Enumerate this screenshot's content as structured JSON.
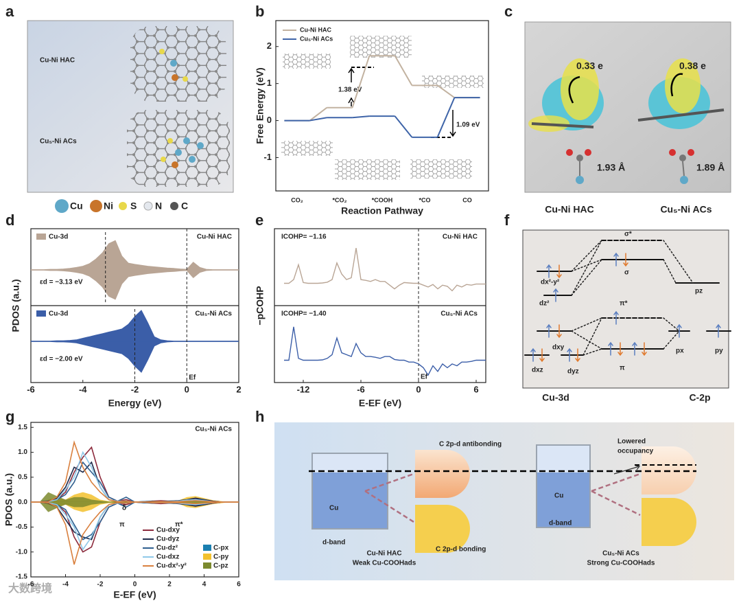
{
  "panel_labels": [
    "a",
    "b",
    "c",
    "d",
    "e",
    "f",
    "g",
    "h"
  ],
  "panel_a": {
    "rows": [
      "Cu-Ni HAC",
      "Cu₅-Ni ACs"
    ]
  },
  "atom_legend": [
    {
      "name": "Cu",
      "color": "#5fa8c8"
    },
    {
      "name": "Ni",
      "color": "#c8742a"
    },
    {
      "name": "S",
      "color": "#e8d84a"
    },
    {
      "name": "N",
      "color": "#e4e8ee"
    },
    {
      "name": "C",
      "color": "#555555"
    }
  ],
  "panel_c": {
    "charges": [
      "0.33 e",
      "0.38 e"
    ],
    "bonds": [
      "1.93 Å",
      "1.89 Å"
    ],
    "names": [
      "Cu-Ni HAC",
      "Cu₅-Ni ACs"
    ]
  },
  "panel_f": {
    "levels": [
      "σ*",
      "σ",
      "π*",
      "π",
      "dx²-y²",
      "dz²",
      "dxy",
      "dxz",
      "dyz",
      "pz",
      "px",
      "py"
    ],
    "footer": [
      "Cu-3d",
      "C-2p"
    ]
  },
  "panel_h": {
    "antibonding": "C 2p-d antibonding",
    "bonding": "C 2p-d bonding",
    "cu": [
      "Cu",
      "Cu"
    ],
    "dband": [
      "d-band",
      "d-band"
    ],
    "lowered": [
      "Lowered",
      "occupancy"
    ],
    "left_caption": [
      "Cu-Ni HAC",
      "Weak Cu-COOHads"
    ],
    "right_caption": [
      "Cu₅-Ni ACs",
      "Strong Cu-COOHads"
    ]
  },
  "watermark": "大数跨境",
  "chart_data": [
    {
      "type": "step",
      "ylabel": "Free Energy (eV)",
      "xlabel": "Reaction Pathway",
      "categories": [
        "CO₂",
        "*CO₂",
        "*COOH",
        "*CO",
        "CO"
      ],
      "series": [
        {
          "name": "Cu-Ni HAC",
          "color": "#c2b2a0",
          "values": [
            0,
            0.35,
            1.75,
            0.95,
            0.62
          ]
        },
        {
          "name": "Cu₅-Ni ACs",
          "color": "#3e64a8",
          "values": [
            0,
            0.08,
            0.12,
            -0.45,
            0.62
          ]
        }
      ],
      "ylim": [
        -1.9,
        2.7
      ],
      "yticks": [
        -1,
        0,
        1,
        2
      ],
      "annotations": [
        "1.38 eV",
        "1.09 eV"
      ]
    },
    {
      "type": "area",
      "ylabel": "PDOS (a.u.)",
      "xlabel": "Energy (eV)",
      "xlim": [
        -6,
        2
      ],
      "xticks": [
        -6,
        -4,
        -2,
        0,
        2
      ],
      "fermi_label": "Ef",
      "x": [
        -6,
        -5.75,
        -5.5,
        -5.25,
        -5,
        -4.75,
        -4.5,
        -4.25,
        -4,
        -3.75,
        -3.5,
        -3.25,
        -3,
        -2.75,
        -2.5,
        -2.25,
        -2,
        -1.75,
        -1.5,
        -1.25,
        -1,
        -0.75,
        -0.5,
        -0.25,
        0,
        0.25,
        0.5,
        0.75,
        1,
        1.25,
        1.5,
        1.75,
        2
      ],
      "series": [
        {
          "name": "Cu-3d",
          "system": "Cu-Ni HAC",
          "color": "#b9a595",
          "values": [
            0.01,
            0.01,
            0.01,
            0.02,
            0.02,
            0.03,
            0.05,
            0.08,
            0.12,
            0.2,
            0.35,
            0.55,
            0.85,
            0.95,
            0.45,
            0.22,
            0.18,
            0.15,
            0.12,
            0.1,
            0.08,
            0.06,
            0.05,
            0.03,
            0.02,
            0.25,
            0.08,
            0.02,
            0.01,
            0.01,
            0.01,
            0.01,
            0.01
          ],
          "d_center": -3.13,
          "d_center_label": "εd = −3.13 eV"
        },
        {
          "name": "Cu-3d",
          "system": "Cu₅-Ni ACs",
          "color": "#3b5ea8",
          "values": [
            0.01,
            0.01,
            0.01,
            0.01,
            0.02,
            0.02,
            0.03,
            0.05,
            0.1,
            0.15,
            0.2,
            0.25,
            0.3,
            0.35,
            0.4,
            0.55,
            0.8,
            1.0,
            0.6,
            0.15,
            0.05,
            0.02,
            0.01,
            0.01,
            0.01,
            0.01,
            0.01,
            0.01,
            0.01,
            0.01,
            0.01,
            0.01,
            0.01
          ],
          "d_center": -2.0,
          "d_center_label": "εd = −2.00 eV"
        }
      ]
    },
    {
      "type": "line",
      "ylabel": "−pCOHP",
      "xlabel": "E-EF (eV)",
      "xlim": [
        -15,
        7
      ],
      "xticks": [
        -12,
        -6,
        0,
        6
      ],
      "ylim": [
        -0.6,
        1.1
      ],
      "fermi_label": "Ef",
      "x": [
        -14,
        -13.5,
        -13,
        -12.5,
        -12,
        -11.5,
        -11,
        -10.5,
        -10,
        -9.5,
        -9,
        -8.5,
        -8,
        -7.5,
        -7,
        -6.5,
        -6,
        -5.5,
        -5,
        -4.5,
        -4,
        -3.5,
        -3,
        -2.5,
        -2,
        -1.5,
        -1,
        -0.5,
        0,
        0.5,
        1,
        1.5,
        2,
        2.5,
        3,
        3.5,
        4,
        4.5,
        5,
        5.5,
        6,
        6.5,
        7
      ],
      "series": [
        {
          "name": "Cu-Ni HAC",
          "icohp_label": "ICOHP= −1.16",
          "color": "#b9a595",
          "values": [
            0,
            0,
            0.1,
            0.5,
            0.02,
            0,
            0,
            0,
            0.01,
            0.03,
            0.1,
            0.55,
            0.25,
            0.1,
            0.15,
            0.95,
            0.1,
            0.08,
            0.05,
            0.1,
            0.05,
            0.05,
            -0.05,
            -0.15,
            -0.05,
            0.02,
            0.01,
            0,
            0,
            -0.05,
            -0.1,
            -0.03,
            -0.15,
            -0.05,
            -0.08,
            -0.2,
            -0.05,
            -0.1,
            -0.03,
            -0.05,
            -0.02,
            -0.02,
            -0.02
          ]
        },
        {
          "name": "Cu₅-Ni ACs",
          "icohp_label": "ICOHP= −1.40",
          "color": "#3b5ea8",
          "values": [
            0,
            0,
            0.9,
            0.05,
            0,
            0,
            0,
            0,
            0.01,
            0.05,
            0.15,
            0.6,
            0.2,
            0.15,
            0.1,
            0.45,
            0.2,
            0.1,
            0.1,
            0.08,
            0.05,
            0.1,
            0.1,
            0.02,
            0,
            0,
            -0.05,
            -0.05,
            -0.1,
            -0.2,
            -0.4,
            -0.15,
            -0.3,
            -0.1,
            -0.2,
            -0.1,
            -0.15,
            -0.05,
            -0.05,
            -0.03,
            0,
            0,
            0
          ]
        }
      ]
    },
    {
      "type": "pdos",
      "title": "Cu₅-Ni ACs",
      "ylabel": "PDOS (a.u.)",
      "xlabel": "E-EF (eV)",
      "xlim": [
        -6,
        6
      ],
      "ylim": [
        -1.5,
        1.6
      ],
      "xticks": [
        -6,
        -4,
        -2,
        0,
        2,
        4,
        6
      ],
      "yticks": [
        -1.5,
        {
          "value": -1,
          "label": "-1.0"
        },
        -0.5,
        {
          "value": 0,
          "label": "0.0"
        },
        0.5,
        {
          "value": 1,
          "label": "1.0"
        },
        1.5
      ],
      "annotations": [
        "δ",
        "π",
        "π*"
      ],
      "x": [
        -6,
        -5.5,
        -5,
        -4.5,
        -4,
        -3.5,
        -3,
        -2.5,
        -2,
        -1.5,
        -1,
        -0.5,
        0,
        0.5,
        1,
        1.5,
        2,
        2.5,
        3,
        3.5,
        4,
        4.5,
        5,
        5.5,
        6
      ],
      "fills": [
        {
          "name": "C-px",
          "color": "#1a7fb0",
          "values": [
            0,
            0,
            0.01,
            0.02,
            0.03,
            0.02,
            0.02,
            0.01,
            0.01,
            0.01,
            0.01,
            0.01,
            0,
            0,
            0,
            0,
            0,
            0,
            0.01,
            0.02,
            0.01,
            0,
            0,
            0,
            0
          ],
          "down_values": [
            0,
            0,
            -0.01,
            -0.02,
            -0.03,
            -0.02,
            -0.02,
            -0.01,
            -0.01,
            -0.01,
            -0.01,
            -0.01,
            0,
            0,
            0,
            0,
            0,
            0,
            -0.01,
            -0.02,
            -0.01,
            0,
            0,
            0,
            0
          ]
        },
        {
          "name": "C-py",
          "color": "#f2c12e",
          "values": [
            0,
            0,
            0.05,
            0.1,
            0.05,
            0.15,
            0.2,
            0.15,
            0.05,
            0.02,
            0.02,
            0.03,
            0,
            0,
            0.02,
            0.02,
            0.02,
            0.03,
            0.1,
            0.12,
            0.08,
            0.04,
            0.02,
            0,
            0
          ],
          "down_values": [
            0,
            0,
            -0.05,
            -0.1,
            -0.05,
            -0.15,
            -0.2,
            -0.15,
            -0.05,
            -0.02,
            -0.02,
            -0.03,
            0,
            0,
            -0.02,
            -0.02,
            -0.02,
            -0.03,
            -0.1,
            -0.12,
            -0.08,
            -0.04,
            -0.02,
            0,
            0
          ]
        },
        {
          "name": "C-pz",
          "color": "#7c8a2e",
          "values": [
            0,
            0,
            0.2,
            0.12,
            0.05,
            0.1,
            0.1,
            0.05,
            0.03,
            0.01,
            0.01,
            0.02,
            0,
            0,
            0.01,
            0.01,
            0.01,
            0.02,
            0.05,
            0.06,
            0.04,
            0.02,
            0,
            0,
            0
          ],
          "down_values": [
            0,
            0,
            -0.2,
            -0.12,
            -0.05,
            -0.1,
            -0.1,
            -0.05,
            -0.03,
            -0.01,
            -0.01,
            -0.02,
            0,
            0,
            -0.01,
            -0.01,
            -0.01,
            -0.02,
            -0.05,
            -0.06,
            -0.04,
            -0.02,
            0,
            0,
            0
          ]
        }
      ],
      "series": [
        {
          "name": "Cu-dxy",
          "color": "#8c2a3c",
          "values": [
            0,
            0,
            0.02,
            0.05,
            0.2,
            0.6,
            0.9,
            1.1,
            0.5,
            0.1,
            0.02,
            0.05,
            0,
            0,
            0.02,
            0.03,
            0.02,
            0.02,
            0.03,
            0.06,
            0.05,
            0.02,
            0,
            0,
            0
          ],
          "down_values": [
            0,
            0,
            -0.02,
            -0.05,
            -0.2,
            -0.7,
            -1.0,
            -0.9,
            -0.4,
            -0.1,
            -0.02,
            -0.05,
            0,
            0,
            -0.02,
            -0.03,
            -0.02,
            -0.02,
            -0.03,
            -0.06,
            -0.05,
            -0.02,
            0,
            0,
            0
          ]
        },
        {
          "name": "Cu-dyz",
          "color": "#1e2a4a",
          "values": [
            0,
            0,
            0.02,
            0.08,
            0.3,
            0.7,
            0.6,
            0.8,
            0.3,
            0.05,
            0.01,
            0.02,
            0,
            0.01,
            0.02,
            0.01,
            0.02,
            0.03,
            0.05,
            0.08,
            0.05,
            0.02,
            0,
            0,
            0
          ],
          "down_values": [
            0,
            0,
            -0.02,
            -0.1,
            -0.35,
            -0.6,
            -0.7,
            -0.75,
            -0.3,
            -0.05,
            -0.01,
            -0.02,
            0,
            -0.01,
            -0.02,
            -0.01,
            -0.02,
            -0.03,
            -0.05,
            -0.08,
            -0.05,
            -0.02,
            0,
            0,
            0
          ]
        },
        {
          "name": "Cu-dz²",
          "color": "#2e5f8f",
          "values": [
            0,
            0,
            0.01,
            0.05,
            0.15,
            0.4,
            0.8,
            0.6,
            0.4,
            0.1,
            0.02,
            0.1,
            0,
            0.01,
            0.01,
            0.01,
            0.02,
            0.02,
            0.03,
            0.05,
            0.04,
            0.01,
            0,
            0,
            0
          ],
          "down_values": [
            0,
            0,
            -0.01,
            -0.05,
            -0.15,
            -0.45,
            -0.75,
            -0.65,
            -0.4,
            -0.1,
            -0.02,
            -0.1,
            0,
            -0.01,
            -0.01,
            -0.01,
            -0.02,
            -0.02,
            -0.03,
            -0.05,
            -0.04,
            -0.01,
            0,
            0,
            0
          ]
        },
        {
          "name": "Cu-dxz",
          "color": "#8ec8e8",
          "values": [
            0,
            0,
            0.01,
            0.05,
            0.25,
            0.5,
            1.0,
            0.7,
            0.3,
            0.05,
            0.02,
            0.02,
            0,
            0,
            0.01,
            0.01,
            0.01,
            0.02,
            0.04,
            0.05,
            0.03,
            0.01,
            0,
            0,
            0
          ],
          "down_values": [
            0,
            0,
            -0.01,
            -0.05,
            -0.25,
            -0.5,
            -0.95,
            -0.7,
            -0.3,
            -0.05,
            -0.02,
            -0.02,
            0,
            0,
            -0.01,
            -0.01,
            -0.01,
            -0.02,
            -0.04,
            -0.05,
            -0.03,
            -0.01,
            0,
            0,
            0
          ]
        },
        {
          "name": "Cu-dx²-y²",
          "color": "#d9803e",
          "values": [
            0,
            0,
            0.01,
            0.1,
            0.4,
            1.2,
            0.7,
            0.4,
            0.2,
            0.05,
            0.01,
            0.02,
            0,
            0,
            0.01,
            0.01,
            0.01,
            0.01,
            0.02,
            0.03,
            0.02,
            0.01,
            0,
            0,
            0
          ],
          "down_values": [
            0,
            0,
            -0.01,
            -0.1,
            -0.45,
            -1.25,
            -0.65,
            -0.4,
            -0.2,
            -0.05,
            -0.01,
            -0.02,
            0,
            0,
            -0.01,
            -0.01,
            -0.01,
            -0.01,
            -0.02,
            -0.03,
            -0.02,
            -0.01,
            0,
            0,
            0
          ]
        }
      ]
    }
  ]
}
